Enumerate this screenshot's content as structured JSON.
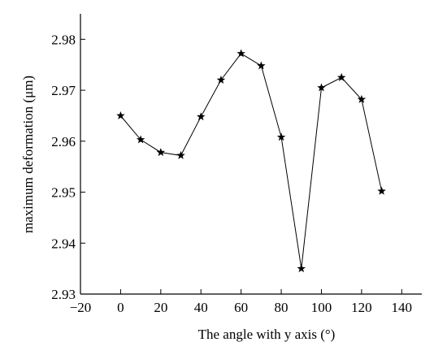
{
  "chart_data": {
    "type": "line",
    "title": "",
    "xlabel": "The angle with y axis (°)",
    "ylabel": "maximum deformation (μm)",
    "xlim": [
      -20,
      150
    ],
    "ylim": [
      2.93,
      2.985
    ],
    "x_ticks": [
      -20,
      0,
      20,
      40,
      60,
      80,
      100,
      120,
      140
    ],
    "x_tick_labels": [
      "−20",
      "0",
      "20",
      "40",
      "60",
      "80",
      "100",
      "120",
      "140"
    ],
    "y_ticks": [
      2.93,
      2.94,
      2.95,
      2.96,
      2.97,
      2.98
    ],
    "y_tick_labels": [
      "2.93",
      "2.94",
      "2.95",
      "2.96",
      "2.97",
      "2.98"
    ],
    "grid": false,
    "legend": "none",
    "marker": "star",
    "series": [
      {
        "x": [
          0,
          10,
          20,
          30,
          40,
          50,
          60,
          70,
          80,
          90,
          100,
          110,
          120,
          130
        ],
        "y": [
          2.965,
          2.9603,
          2.9578,
          2.9572,
          2.9648,
          2.972,
          2.9772,
          2.9748,
          2.9608,
          2.935,
          2.9705,
          2.9725,
          2.9682,
          2.9502
        ]
      }
    ],
    "colors": {
      "line": "#000000",
      "marker": "#000000",
      "axis": "#000000"
    }
  }
}
